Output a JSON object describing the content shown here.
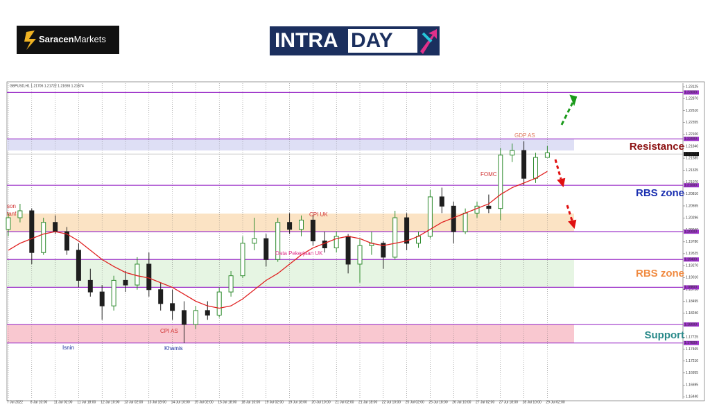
{
  "logos": {
    "saracen_bold": "Saracen",
    "saracen_rest": "Markets",
    "intraday_a": "INTRA",
    "intraday_b": "DAY"
  },
  "chart_data": {
    "type": "candlestick",
    "header": "GBPUSD,H1  1.21706 1.21722 1.21655 1.21674",
    "categories": [
      "7 Jul 2022",
      null,
      "8 Jul 10:00",
      null,
      "11 Jul 02:00",
      null,
      "11 Jul 18:00",
      null,
      "12 Jul 10:00",
      null,
      "13 Jul 02:00",
      null,
      "13 Jul 18:00",
      null,
      "14 Jul 10:00",
      null,
      "15 Jul 02:00",
      null,
      "15 Jul 18:00",
      null,
      "18 Jul 10:00",
      null,
      "19 Jul 02:00",
      null,
      "19 Jul 18:00",
      null,
      "20 Jul 10:00",
      null,
      "21 Jul 02:00",
      null,
      "21 Jul 18:00",
      null,
      "22 Jul 10:00",
      null,
      "25 Jul 02:00",
      null,
      "25 Jul 18:00",
      null,
      "26 Jul 10:00",
      null,
      "27 Jul 02:00",
      null,
      "27 Jul 18:00",
      null,
      "28 Jul 10:00",
      null,
      "29 Jul 02:00"
    ],
    "open": [
      1.2005,
      1.203,
      1.2045,
      1.1955,
      1.202,
      1.2,
      1.196,
      1.1895,
      1.187,
      1.184,
      1.1895,
      1.1885,
      1.193,
      1.1875,
      1.1845,
      1.183,
      1.18,
      1.183,
      1.182,
      1.187,
      1.1905,
      1.1975,
      1.1985,
      1.194,
      1.202,
      1.2005,
      1.2025,
      1.198,
      1.1965,
      1.199,
      1.193,
      1.197,
      1.1975,
      1.1945,
      1.203,
      1.1975,
      1.199,
      1.2075,
      1.2055,
      1.2,
      1.204,
      1.2055,
      1.205,
      1.2165,
      1.2175,
      1.2115,
      1.216
    ],
    "high": [
      1.204,
      1.206,
      1.205,
      1.203,
      1.2035,
      1.201,
      1.1975,
      1.192,
      1.1885,
      1.1905,
      1.1915,
      1.1945,
      1.1955,
      1.189,
      1.1875,
      1.185,
      1.184,
      1.185,
      1.188,
      1.1915,
      1.199,
      1.203,
      1.1995,
      1.203,
      1.204,
      1.2035,
      1.2035,
      1.2,
      1.2,
      1.1995,
      1.1985,
      1.2,
      1.198,
      1.2045,
      1.204,
      1.2,
      1.209,
      1.2095,
      1.2065,
      1.205,
      1.2065,
      1.208,
      1.218,
      1.219,
      1.2195,
      1.217,
      1.2185
    ],
    "low": [
      1.199,
      1.202,
      1.193,
      1.195,
      1.1995,
      1.195,
      1.188,
      1.186,
      1.181,
      1.183,
      1.187,
      1.1875,
      1.186,
      1.183,
      1.181,
      1.176,
      1.179,
      1.181,
      1.1815,
      1.186,
      1.19,
      1.196,
      1.1925,
      1.1935,
      1.1995,
      1.199,
      1.197,
      1.1955,
      1.1955,
      1.191,
      1.189,
      1.195,
      1.192,
      1.194,
      1.196,
      1.1965,
      1.1985,
      1.204,
      1.1975,
      1.1995,
      1.203,
      1.204,
      1.2025,
      1.215,
      1.21,
      1.2105,
      1.216
    ],
    "close": [
      1.203,
      1.2045,
      1.1955,
      1.202,
      1.2,
      1.196,
      1.1895,
      1.187,
      1.184,
      1.1895,
      1.1885,
      1.193,
      1.1875,
      1.1845,
      1.183,
      1.18,
      1.183,
      1.182,
      1.187,
      1.1905,
      1.1975,
      1.1985,
      1.194,
      1.202,
      1.2005,
      1.2025,
      1.198,
      1.1965,
      1.199,
      1.193,
      1.197,
      1.1975,
      1.1945,
      1.203,
      1.1975,
      1.199,
      1.2075,
      1.2055,
      1.2,
      1.204,
      1.2055,
      1.205,
      1.2165,
      1.2175,
      1.2115,
      1.216,
      1.217
    ],
    "up_color": "#2e8b2e",
    "down_color": "#1e1e1e",
    "ma_values": [
      1.196,
      1.1975,
      1.1985,
      1.1995,
      1.2,
      1.1995,
      1.198,
      1.196,
      1.194,
      1.1925,
      1.1912,
      1.1905,
      1.19,
      1.189,
      1.188,
      1.1865,
      1.185,
      1.184,
      1.1835,
      1.184,
      1.1855,
      1.1875,
      1.1895,
      1.191,
      1.193,
      1.195,
      1.1965,
      1.1975,
      1.1985,
      1.199,
      1.1985,
      1.1975,
      1.197,
      1.1975,
      1.198,
      1.199,
      1.2005,
      1.202,
      1.203,
      1.204,
      1.205,
      1.206,
      1.208,
      1.2095,
      1.2105,
      1.2115,
      1.213
    ],
    "ma_color": "#e02020",
    "ylim": [
      1.164,
      1.232
    ],
    "yticks": [
      1.23125,
      {
        "value": 1.2287,
        "label": "1.22870"
      },
      {
        "value": 1.2261,
        "label": "1.22610"
      },
      1.22355,
      {
        "value": 1.221,
        "label": "1.22100"
      },
      {
        "value": 1.2184,
        "label": "1.21840"
      },
      1.21585,
      1.21325,
      {
        "value": 1.2107,
        "label": "1.21070"
      },
      {
        "value": 1.2081,
        "label": "1.20810"
      },
      1.20555,
      1.20296,
      {
        "value": 1.2004,
        "label": "1.20040"
      },
      {
        "value": 1.1978,
        "label": "1.19780"
      },
      1.19525,
      {
        "value": 1.1927,
        "label": "1.19270"
      },
      {
        "value": 1.1901,
        "label": "1.19010"
      },
      {
        "value": 1.1875,
        "label": "1.18750"
      },
      1.18495,
      {
        "value": 1.1824,
        "label": "1.18240"
      },
      1.17985,
      1.17725,
      1.17465,
      {
        "value": 1.1721,
        "label": "1.17210"
      },
      1.16955,
      1.16695,
      {
        "value": 1.1644,
        "label": "1.16440"
      }
    ],
    "levels": [
      {
        "value": 1.23,
        "label": "1.23000"
      },
      {
        "value": 1.22,
        "label": "1.22000"
      },
      {
        "value": 1.21,
        "label": "1.21000"
      },
      {
        "value": 1.2,
        "label": "1.20000"
      },
      {
        "value": 1.194,
        "label": "1.19400"
      },
      {
        "value": 1.188,
        "label": "1.18800"
      },
      {
        "value": 1.18,
        "label": "1.18000"
      },
      {
        "value": 1.176,
        "label": "1.17600"
      }
    ],
    "level_color": "#9b30c8",
    "zones": [
      {
        "from": 1.22,
        "to": 1.2175,
        "color": "#dedff5"
      },
      {
        "from": 1.2039,
        "to": 1.2,
        "color": "#fbe3c4"
      },
      {
        "from": 1.194,
        "to": 1.188,
        "color": "#e6f5e3"
      },
      {
        "from": 1.18,
        "to": 1.176,
        "color": "#f9c8d0"
      }
    ],
    "current_price": 1.21674,
    "annotations": [
      "GDP AS",
      "FOMC",
      "CPI UK",
      "Data Pekerjaan UK",
      "CPI AS",
      "Isnin",
      "Khamis",
      "son",
      "tanf"
    ],
    "zone_labels": [
      "Resistance",
      "RBS zone",
      "RBS zone",
      "Support"
    ]
  }
}
